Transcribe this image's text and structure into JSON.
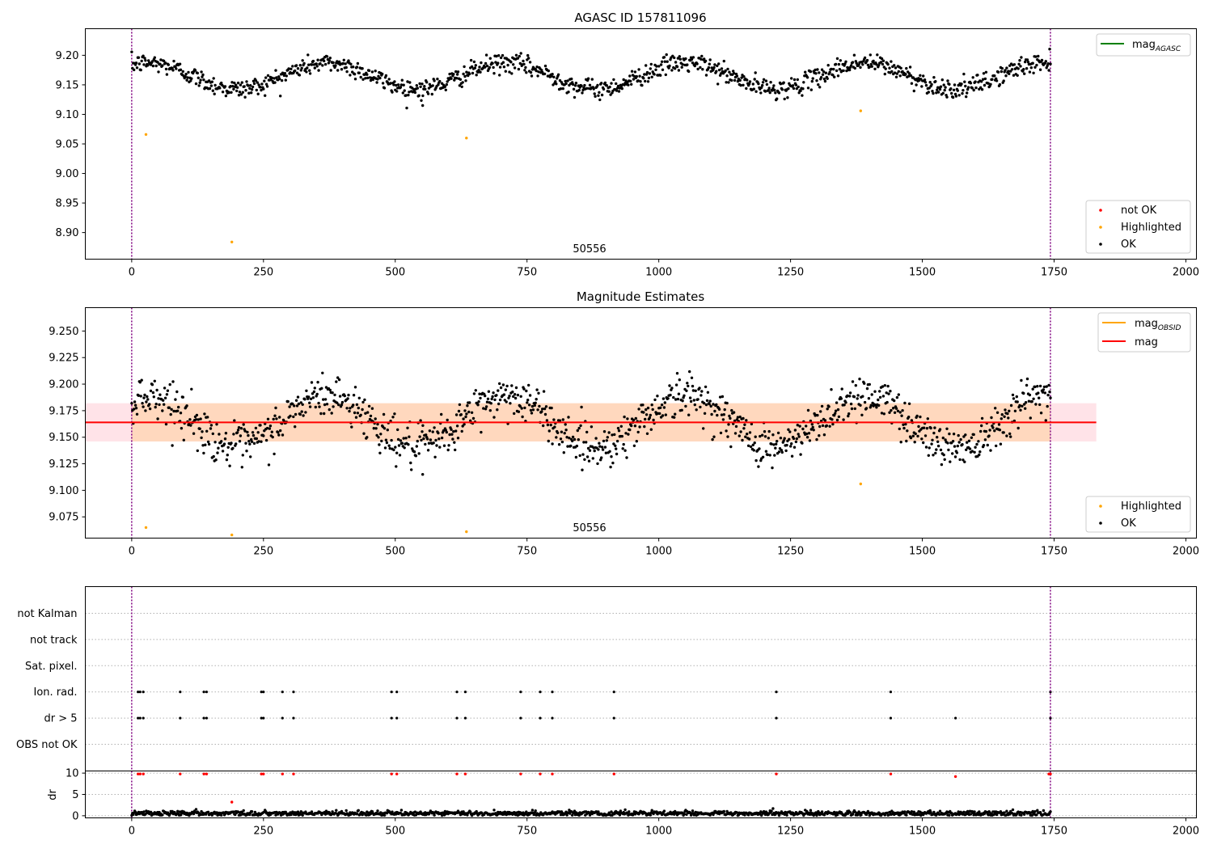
{
  "chart_data": [
    {
      "type": "scatter",
      "title": "AGASC ID 157811096",
      "annotation": "50556",
      "xlim": [
        -88,
        2020
      ],
      "ylim": [
        8.855,
        9.245
      ],
      "xticks": [
        "0",
        "250",
        "500",
        "750",
        "1000",
        "1250",
        "1500",
        "1750",
        "2000"
      ],
      "yticks": [
        "8.90",
        "8.95",
        "9.00",
        "9.05",
        "9.10",
        "9.15",
        "9.20"
      ],
      "vlines": [
        0,
        1743
      ],
      "line_legend": [
        {
          "label": "mag",
          "subscript": "AGASC",
          "color": "#008000"
        }
      ],
      "marker_legend": [
        {
          "label": "not OK",
          "color": "#ff0000"
        },
        {
          "label": "Highlighted",
          "color": "#ffa500"
        },
        {
          "label": "OK",
          "color": "#000000"
        }
      ],
      "series": [
        {
          "name": "OK",
          "color": "#000000",
          "model": {
            "x_start": 0,
            "x_end": 1743,
            "n": 1200,
            "base": 9.165,
            "amplitude": 0.022,
            "period": 340,
            "phase": 1.0,
            "noise": 0.008
          },
          "outliers": [
            [
              552,
              9.115
            ]
          ]
        },
        {
          "name": "Highlighted",
          "color": "#ffa500",
          "points": [
            [
              27,
              9.066
            ],
            [
              190,
              8.884
            ],
            [
              635,
              9.06
            ],
            [
              1383,
              9.106
            ]
          ]
        }
      ]
    },
    {
      "type": "scatter",
      "title": "Magnitude Estimates",
      "annotation": "50556",
      "xlim": [
        -88,
        2020
      ],
      "ylim": [
        9.055,
        9.272
      ],
      "xticks": [
        "0",
        "250",
        "500",
        "750",
        "1000",
        "1250",
        "1500",
        "1750",
        "2000"
      ],
      "yticks": [
        "9.075",
        "9.100",
        "9.125",
        "9.150",
        "9.175",
        "9.200",
        "9.225",
        "9.250"
      ],
      "vlines": [
        0,
        1743
      ],
      "mean_mag": 9.164,
      "band": [
        9.146,
        9.182
      ],
      "band_extent_x": [
        -88,
        1830
      ],
      "line_legend": [
        {
          "label": "mag",
          "subscript": "OBSID",
          "color": "#ffa500"
        },
        {
          "label": "mag",
          "subscript": "",
          "color": "#ff0000"
        }
      ],
      "marker_legend": [
        {
          "label": "Highlighted",
          "color": "#ffa500"
        },
        {
          "label": "OK",
          "color": "#000000"
        }
      ],
      "series": [
        {
          "name": "OK",
          "color": "#000000",
          "model": {
            "x_start": 0,
            "x_end": 1743,
            "n": 1200,
            "base": 9.165,
            "amplitude": 0.024,
            "period": 340,
            "phase": 1.0,
            "noise": 0.01
          },
          "outliers": [
            [
              552,
              9.115
            ]
          ]
        },
        {
          "name": "Highlighted",
          "color": "#ffa500",
          "points": [
            [
              27,
              9.065
            ],
            [
              190,
              9.058
            ],
            [
              635,
              9.061
            ],
            [
              1383,
              9.106
            ]
          ]
        }
      ]
    },
    {
      "type": "scatter",
      "title": "",
      "xlim": [
        -88,
        2020
      ],
      "categories": [
        "not Kalman",
        "not track",
        "Sat. pixel.",
        "Ion. rad.",
        "dr > 5",
        "OBS not OK"
      ],
      "flag_x": [
        12,
        16,
        22,
        92,
        137,
        142,
        246,
        250,
        286,
        307,
        493,
        503,
        617,
        633,
        738,
        775,
        798,
        915,
        1223,
        1440,
        1740,
        1743
      ],
      "flag_rows": {
        "not Kalman": [],
        "not track": [],
        "Sat. pixel.": [],
        "Ion. rad.": [
          12,
          16,
          22,
          92,
          137,
          142,
          246,
          250,
          286,
          307,
          493,
          503,
          617,
          633,
          738,
          775,
          798,
          915,
          1223,
          1440,
          1743
        ],
        "dr > 5": [
          12,
          16,
          22,
          92,
          137,
          142,
          246,
          250,
          286,
          307,
          493,
          503,
          617,
          633,
          738,
          775,
          798,
          915,
          1223,
          1440,
          1563,
          1743
        ],
        "OBS not OK": []
      }
    },
    {
      "type": "scatter",
      "title": "",
      "ylabel": "dr",
      "xlim": [
        -88,
        2020
      ],
      "ylim": [
        -0.5,
        10.5
      ],
      "xticks": [
        "0",
        "250",
        "500",
        "750",
        "1000",
        "1250",
        "1500",
        "1750",
        "2000"
      ],
      "yticks": [
        "0",
        "5",
        "10"
      ],
      "vlines": [
        0,
        1743
      ],
      "series": [
        {
          "name": "dr",
          "color": "#000000",
          "model": {
            "x_start": 0,
            "x_end": 1743,
            "n": 1200,
            "base": 0.55,
            "noise": 0.3
          }
        },
        {
          "name": "dr not OK",
          "color": "#ff0000",
          "points": [
            [
              12,
              9.8
            ],
            [
              16,
              9.8
            ],
            [
              22,
              9.8
            ],
            [
              92,
              9.8
            ],
            [
              137,
              9.8
            ],
            [
              142,
              9.8
            ],
            [
              190,
              3.2
            ],
            [
              246,
              9.8
            ],
            [
              250,
              9.8
            ],
            [
              286,
              9.8
            ],
            [
              307,
              9.8
            ],
            [
              493,
              9.8
            ],
            [
              503,
              9.8
            ],
            [
              617,
              9.8
            ],
            [
              633,
              9.8
            ],
            [
              738,
              9.8
            ],
            [
              775,
              9.8
            ],
            [
              798,
              9.8
            ],
            [
              915,
              9.8
            ],
            [
              1223,
              9.8
            ],
            [
              1440,
              9.8
            ],
            [
              1563,
              9.2
            ],
            [
              1740,
              9.8
            ],
            [
              1743,
              9.8
            ]
          ]
        }
      ]
    }
  ]
}
